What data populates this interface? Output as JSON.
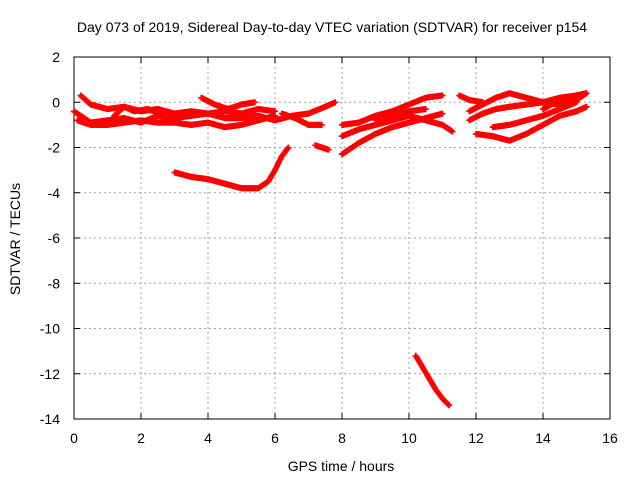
{
  "chart_data": {
    "type": "scatter",
    "title": "Day 073 of 2019, Sidereal Day-to-day VTEC variation (SDTVAR) for receiver p154",
    "xlabel": "GPS time / hours",
    "ylabel": "SDTVAR / TECUs",
    "xlim": [
      0,
      16
    ],
    "ylim": [
      -14,
      2
    ],
    "xticks": [
      0,
      2,
      4,
      6,
      8,
      10,
      12,
      14,
      16
    ],
    "yticks": [
      -14,
      -12,
      -10,
      -8,
      -6,
      -4,
      -2,
      0,
      2
    ],
    "grid": true,
    "marker": "plus",
    "series_color": "#ff0000",
    "tracks": [
      [
        [
          0.0,
          -0.4
        ],
        [
          0.5,
          -0.9
        ],
        [
          1.0,
          -0.8
        ],
        [
          1.5,
          -0.7
        ],
        [
          2.0,
          -0.9
        ],
        [
          2.5,
          -0.6
        ],
        [
          3.0,
          -0.7
        ],
        [
          3.5,
          -0.6
        ],
        [
          4.0,
          -0.5
        ],
        [
          4.5,
          -0.4
        ],
        [
          5.0,
          -0.5
        ],
        [
          5.5,
          -0.3
        ],
        [
          6.0,
          -0.4
        ]
      ],
      [
        [
          0.2,
          0.3
        ],
        [
          0.5,
          -0.1
        ],
        [
          1.0,
          -0.3
        ],
        [
          1.5,
          -0.2
        ],
        [
          2.0,
          -0.4
        ],
        [
          2.5,
          -0.3
        ],
        [
          3.0,
          -0.5
        ],
        [
          3.5,
          -0.4
        ],
        [
          4.0,
          -0.5
        ],
        [
          4.5,
          -0.7
        ],
        [
          5.0,
          -0.7
        ],
        [
          5.5,
          -0.6
        ],
        [
          6.0,
          -0.8
        ],
        [
          6.5,
          -0.6
        ],
        [
          7.0,
          -0.5
        ],
        [
          7.5,
          -0.2
        ],
        [
          7.8,
          0.0
        ]
      ],
      [
        [
          0.1,
          -0.8
        ],
        [
          0.5,
          -1.0
        ],
        [
          1.0,
          -1.0
        ],
        [
          1.5,
          -0.9
        ],
        [
          2.0,
          -0.8
        ],
        [
          2.5,
          -0.9
        ],
        [
          3.0,
          -0.9
        ],
        [
          3.5,
          -1.0
        ],
        [
          4.0,
          -0.9
        ],
        [
          4.5,
          -1.1
        ],
        [
          5.0,
          -1.0
        ],
        [
          5.5,
          -0.8
        ],
        [
          6.0,
          -0.6
        ]
      ],
      [
        [
          1.2,
          -0.6
        ],
        [
          1.5,
          -0.2
        ],
        [
          1.8,
          -0.4
        ],
        [
          2.2,
          -0.3
        ],
        [
          2.6,
          -0.5
        ]
      ],
      [
        [
          3.8,
          0.2
        ],
        [
          4.2,
          -0.1
        ],
        [
          4.6,
          -0.3
        ],
        [
          5.0,
          -0.1
        ],
        [
          5.4,
          0.0
        ]
      ],
      [
        [
          6.2,
          -0.5
        ],
        [
          6.6,
          -0.7
        ],
        [
          7.0,
          -1.0
        ],
        [
          7.4,
          -1.0
        ]
      ],
      [
        [
          7.2,
          -1.9
        ],
        [
          7.6,
          -2.1
        ]
      ],
      [
        [
          3.0,
          -3.1
        ],
        [
          3.5,
          -3.3
        ],
        [
          4.0,
          -3.4
        ],
        [
          4.5,
          -3.6
        ],
        [
          5.0,
          -3.8
        ],
        [
          5.5,
          -3.8
        ],
        [
          5.8,
          -3.5
        ],
        [
          6.0,
          -3.0
        ],
        [
          6.2,
          -2.4
        ],
        [
          6.4,
          -2.0
        ]
      ],
      [
        [
          8.0,
          -2.3
        ],
        [
          8.5,
          -1.8
        ],
        [
          9.0,
          -1.4
        ],
        [
          9.5,
          -1.1
        ],
        [
          10.0,
          -0.9
        ],
        [
          10.5,
          -0.7
        ],
        [
          11.0,
          -0.5
        ]
      ],
      [
        [
          8.0,
          -1.0
        ],
        [
          8.5,
          -0.9
        ],
        [
          9.0,
          -0.6
        ],
        [
          9.5,
          -0.4
        ],
        [
          10.0,
          -0.1
        ],
        [
          10.5,
          0.2
        ],
        [
          11.0,
          0.3
        ]
      ],
      [
        [
          8.0,
          -1.5
        ],
        [
          8.5,
          -1.2
        ],
        [
          9.0,
          -1.0
        ],
        [
          9.5,
          -0.8
        ],
        [
          10.0,
          -0.6
        ],
        [
          10.5,
          -0.8
        ],
        [
          11.0,
          -1.0
        ],
        [
          11.3,
          -1.3
        ]
      ],
      [
        [
          9.0,
          -0.8
        ],
        [
          9.5,
          -0.6
        ],
        [
          10.0,
          -0.4
        ],
        [
          10.5,
          -0.3
        ]
      ],
      [
        [
          10.2,
          -11.2
        ],
        [
          10.4,
          -11.7
        ],
        [
          10.6,
          -12.2
        ],
        [
          10.8,
          -12.7
        ],
        [
          11.0,
          -13.1
        ],
        [
          11.2,
          -13.4
        ]
      ],
      [
        [
          11.8,
          -0.8
        ],
        [
          12.2,
          -0.5
        ],
        [
          12.6,
          -0.3
        ],
        [
          13.0,
          -0.2
        ],
        [
          13.5,
          -0.1
        ],
        [
          14.0,
          0.0
        ],
        [
          14.5,
          0.2
        ],
        [
          15.0,
          0.3
        ],
        [
          15.3,
          0.4
        ]
      ],
      [
        [
          11.8,
          -0.4
        ],
        [
          12.2,
          -0.1
        ],
        [
          12.6,
          0.2
        ],
        [
          13.0,
          0.4
        ],
        [
          13.5,
          0.2
        ],
        [
          14.0,
          0.0
        ],
        [
          14.5,
          -0.1
        ],
        [
          15.0,
          0.2
        ]
      ],
      [
        [
          12.0,
          -1.4
        ],
        [
          12.5,
          -1.5
        ],
        [
          13.0,
          -1.7
        ],
        [
          13.5,
          -1.4
        ],
        [
          14.0,
          -1.0
        ],
        [
          14.5,
          -0.6
        ],
        [
          15.0,
          -0.4
        ],
        [
          15.3,
          -0.2
        ]
      ],
      [
        [
          12.5,
          -1.1
        ],
        [
          13.0,
          -1.0
        ],
        [
          13.5,
          -0.8
        ],
        [
          14.0,
          -0.6
        ],
        [
          14.5,
          -0.3
        ],
        [
          15.0,
          0.0
        ]
      ],
      [
        [
          14.0,
          -0.3
        ],
        [
          14.5,
          0.1
        ],
        [
          15.0,
          0.1
        ],
        [
          15.3,
          0.4
        ]
      ],
      [
        [
          11.5,
          0.3
        ],
        [
          11.8,
          0.1
        ],
        [
          12.2,
          0.0
        ]
      ]
    ]
  }
}
